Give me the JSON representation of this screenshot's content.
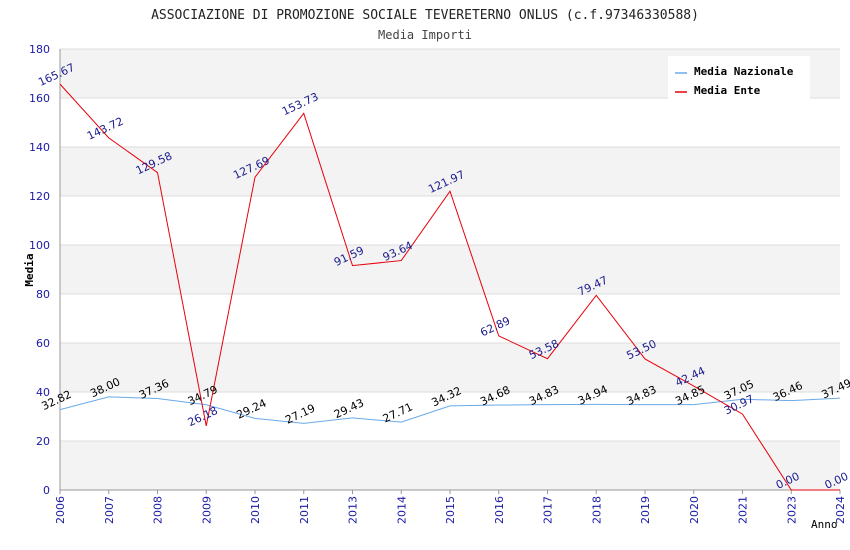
{
  "chart_data": {
    "type": "line",
    "title": "ASSOCIAZIONE DI PROMOZIONE SOCIALE TEVERETERNO ONLUS (c.f.97346330588)",
    "subtitle": "Media Importi",
    "xlabel": "Anno",
    "ylabel": "Media",
    "ylim": [
      0,
      180
    ],
    "yticks": [
      0,
      20,
      40,
      60,
      80,
      100,
      120,
      140,
      160,
      180
    ],
    "categories": [
      "2006",
      "2007",
      "2008",
      "2009",
      "2010",
      "2011",
      "2013",
      "2014",
      "2015",
      "2016",
      "2017",
      "2018",
      "2019",
      "2020",
      "2021",
      "2023",
      "2024"
    ],
    "grid": true,
    "legend_position": "top-right",
    "series": [
      {
        "name": "Media Nazionale",
        "color": "#6aa9e8",
        "label_color": "#000000",
        "values": [
          32.82,
          38.0,
          37.36,
          34.79,
          29.24,
          27.19,
          29.43,
          27.71,
          34.32,
          34.68,
          34.83,
          34.94,
          34.83,
          34.85,
          37.05,
          36.46,
          37.49
        ],
        "labels": [
          "32.82",
          "38.00",
          "37.36",
          "34.79",
          "29.24",
          "27.19",
          "29.43",
          "27.71",
          "34.32",
          "34.68",
          "34.83",
          "34.94",
          "34.83",
          "34.85",
          "37.05",
          "36.46",
          "37.49"
        ]
      },
      {
        "name": "Media Ente",
        "color": "#e8000b",
        "label_color": "#1a1a8c",
        "values": [
          165.67,
          143.72,
          129.58,
          26.18,
          127.69,
          153.73,
          91.59,
          93.64,
          121.97,
          62.89,
          53.58,
          79.47,
          53.5,
          42.44,
          30.97,
          0.0,
          0.0
        ],
        "labels": [
          "165.67",
          "143.72",
          "129.58",
          "26.18",
          "127.69",
          "153.73",
          "91.59",
          "93.64",
          "121.97",
          "62.89",
          "53.58",
          "79.47",
          "53.50",
          "42.44",
          "30.97",
          "0.00",
          "0.00"
        ]
      }
    ]
  }
}
